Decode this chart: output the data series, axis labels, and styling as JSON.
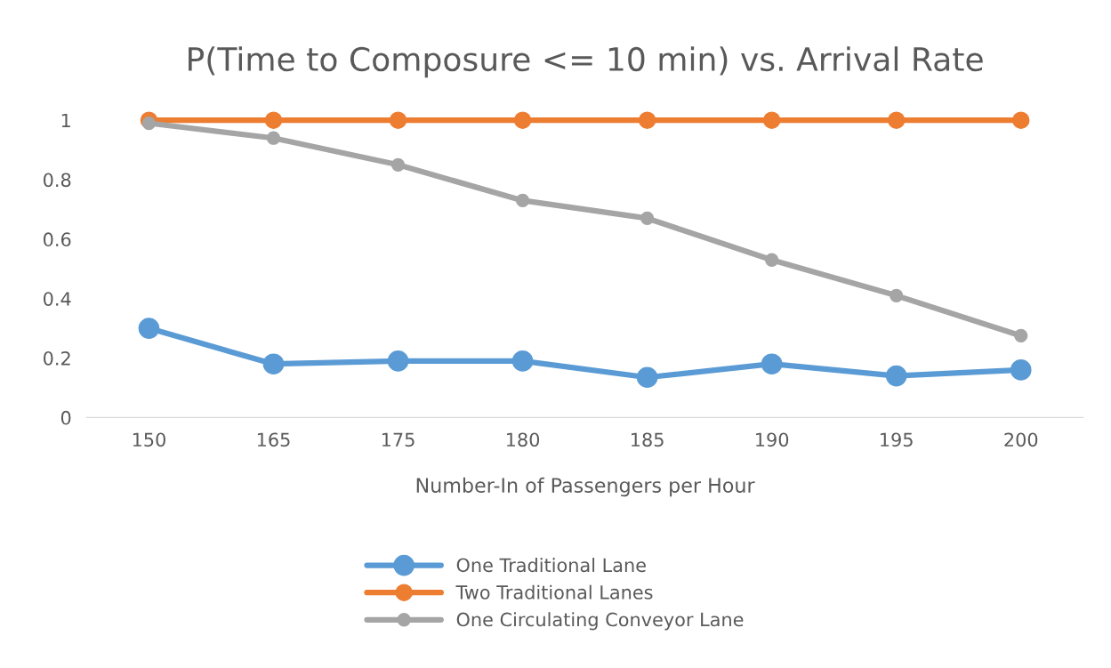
{
  "chart_data": {
    "type": "line",
    "title": "P(Time to Composure <= 10 min) vs. Arrival Rate",
    "xlabel": "Number-In of Passengers per Hour",
    "categories": [
      "150",
      "165",
      "175",
      "180",
      "185",
      "190",
      "195",
      "200"
    ],
    "series": [
      {
        "name": "One Traditional Lane",
        "color": "#5b9bd5",
        "values": [
          0.3,
          0.18,
          0.19,
          0.19,
          0.135,
          0.18,
          0.14,
          0.16
        ]
      },
      {
        "name": "Two Traditional Lanes",
        "color": "#ed7d31",
        "values": [
          1,
          1,
          1,
          1,
          1,
          1,
          1,
          1
        ]
      },
      {
        "name": "One Circulating Conveyor Lane",
        "color": "#a5a5a5",
        "values": [
          0.99,
          0.94,
          0.85,
          0.73,
          0.67,
          0.53,
          0.41,
          0.275
        ]
      }
    ],
    "ylim": [
      0,
      1
    ],
    "yticks": [
      0,
      0.2,
      0.4,
      0.6,
      0.8,
      1
    ],
    "grid": false,
    "legend": "bottom",
    "marker": "circle",
    "line_style": "solid"
  }
}
